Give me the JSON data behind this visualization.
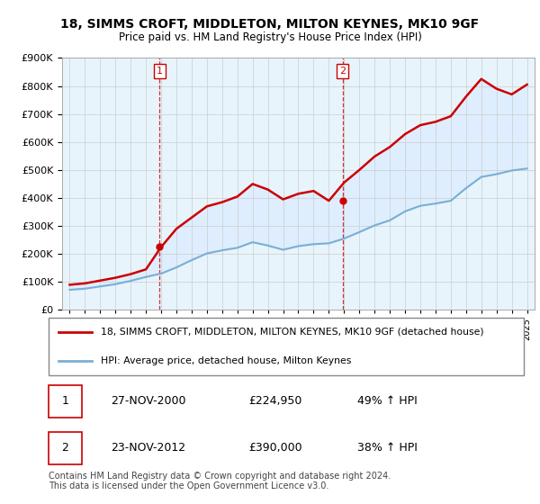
{
  "title": "18, SIMMS CROFT, MIDDLETON, MILTON KEYNES, MK10 9GF",
  "subtitle": "Price paid vs. HM Land Registry's House Price Index (HPI)",
  "legend_line1": "18, SIMMS CROFT, MIDDLETON, MILTON KEYNES, MK10 9GF (detached house)",
  "legend_line2": "HPI: Average price, detached house, Milton Keynes",
  "sale_color": "#cc0000",
  "hpi_color": "#7aafd4",
  "fill_color": "#ddeeff",
  "bg_color": "#e8f4fc",
  "sale1_date": "27-NOV-2000",
  "sale1_price": 224950,
  "sale1_pct": "49% ↑ HPI",
  "sale2_date": "23-NOV-2012",
  "sale2_price": 390000,
  "sale2_pct": "38% ↑ HPI",
  "footer": "Contains HM Land Registry data © Crown copyright and database right 2024.\nThis data is licensed under the Open Government Licence v3.0.",
  "ylim": [
    0,
    900000
  ],
  "yticks": [
    0,
    100000,
    200000,
    300000,
    400000,
    500000,
    600000,
    700000,
    800000,
    900000
  ],
  "sale1_x": 2000.9,
  "sale2_x": 2012.9,
  "hpi_years": [
    1995,
    1996,
    1997,
    1998,
    1999,
    2000,
    2001,
    2002,
    2003,
    2004,
    2005,
    2006,
    2007,
    2008,
    2009,
    2010,
    2011,
    2012,
    2013,
    2014,
    2015,
    2016,
    2017,
    2018,
    2019,
    2020,
    2021,
    2022,
    2023,
    2024,
    2025
  ],
  "hpi_values": [
    72000,
    76000,
    84000,
    92000,
    104000,
    118000,
    130000,
    152000,
    178000,
    202000,
    213000,
    222000,
    242000,
    230000,
    215000,
    228000,
    235000,
    238000,
    255000,
    278000,
    302000,
    320000,
    352000,
    372000,
    380000,
    390000,
    435000,
    475000,
    485000,
    498000,
    505000
  ],
  "sale_years": [
    1995,
    1996,
    1997,
    1998,
    1999,
    2000,
    2001,
    2002,
    2003,
    2004,
    2005,
    2006,
    2007,
    2008,
    2009,
    2010,
    2011,
    2012,
    2013,
    2014,
    2015,
    2016,
    2017,
    2018,
    2019,
    2020,
    2021,
    2022,
    2023,
    2024,
    2025
  ],
  "sale_values": [
    90000,
    95000,
    105000,
    115000,
    128000,
    145000,
    224950,
    290000,
    330000,
    370000,
    385000,
    405000,
    450000,
    430000,
    395000,
    415000,
    425000,
    390000,
    455000,
    500000,
    548000,
    582000,
    628000,
    660000,
    672000,
    692000,
    762000,
    825000,
    790000,
    770000,
    805000
  ]
}
